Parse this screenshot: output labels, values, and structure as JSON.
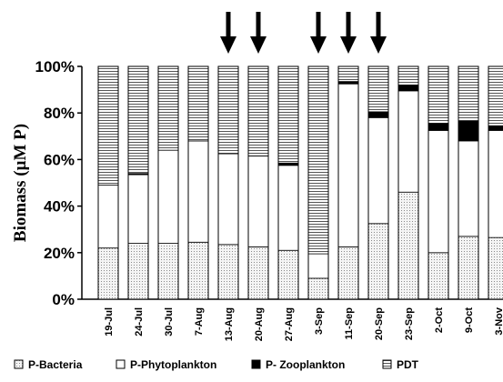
{
  "chart_data": {
    "type": "bar",
    "stacked": true,
    "normalized": true,
    "ylabel": "Biomass (µM P)",
    "xlabel": "",
    "ylim": [
      0,
      100
    ],
    "yticks": [
      "0%",
      "20%",
      "40%",
      "60%",
      "80%",
      "100%"
    ],
    "grid": false,
    "legend_position": "bottom",
    "categories": [
      "19-Jul",
      "24-Jul",
      "30-Jul",
      "7-Aug",
      "13-Aug",
      "20-Aug",
      "27-Aug",
      "3-Sep",
      "11-Sep",
      "20-Sep",
      "23-Sep",
      "2-Oct",
      "9-Oct",
      "3-Nov"
    ],
    "series": [
      {
        "name": "P-Bacteria",
        "pattern": "dotted",
        "values": [
          22,
          24,
          24,
          24.5,
          23.5,
          22.5,
          21,
          9,
          22.5,
          32.5,
          46,
          20,
          27,
          26.5
        ]
      },
      {
        "name": "P-Phytoplankton",
        "pattern": "white",
        "values": [
          27,
          29.5,
          40,
          43.5,
          39,
          39,
          36.5,
          10.5,
          70,
          45.5,
          43.5,
          52.5,
          41,
          46
        ]
      },
      {
        "name": "P- Zooplankton",
        "pattern": "black",
        "values": [
          0,
          0.5,
          0,
          0,
          0,
          0,
          1,
          0,
          1,
          2.5,
          2.5,
          3,
          8.5,
          2
        ]
      },
      {
        "name": "PDT",
        "pattern": "hlines",
        "values": [
          51,
          46,
          36,
          32,
          37.5,
          38.5,
          41.5,
          80.5,
          6.5,
          19.5,
          8,
          24.5,
          23.5,
          25.5
        ]
      }
    ],
    "arrows_at": [
      "13-Aug",
      "20-Aug",
      "3-Sep",
      "11-Sep",
      "20-Sep"
    ]
  }
}
